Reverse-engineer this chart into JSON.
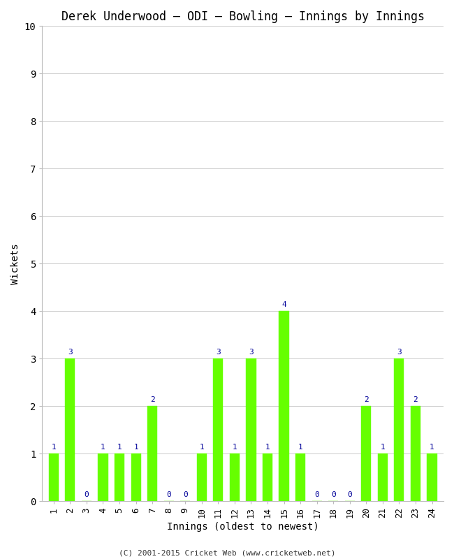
{
  "title": "Derek Underwood – ODI – Bowling – Innings by Innings",
  "xlabel": "Innings (oldest to newest)",
  "ylabel": "Wickets",
  "innings": [
    1,
    2,
    3,
    4,
    5,
    6,
    7,
    8,
    9,
    10,
    11,
    12,
    13,
    14,
    15,
    16,
    17,
    18,
    19,
    20,
    21,
    22,
    23,
    24
  ],
  "wickets": [
    1,
    3,
    0,
    1,
    1,
    1,
    2,
    0,
    0,
    1,
    3,
    1,
    3,
    1,
    4,
    1,
    0,
    0,
    0,
    2,
    1,
    3,
    2,
    1
  ],
  "bar_color": "#66ff00",
  "label_color": "#000099",
  "ylim": [
    0,
    10
  ],
  "yticks": [
    0,
    1,
    2,
    3,
    4,
    5,
    6,
    7,
    8,
    9,
    10
  ],
  "background_color": "#ffffff",
  "footer": "(C) 2001-2015 Cricket Web (www.cricketweb.net)",
  "title_fontsize": 12,
  "axis_label_fontsize": 10,
  "tick_fontsize": 9,
  "bar_label_fontsize": 8,
  "footer_fontsize": 8,
  "bar_width": 0.6
}
